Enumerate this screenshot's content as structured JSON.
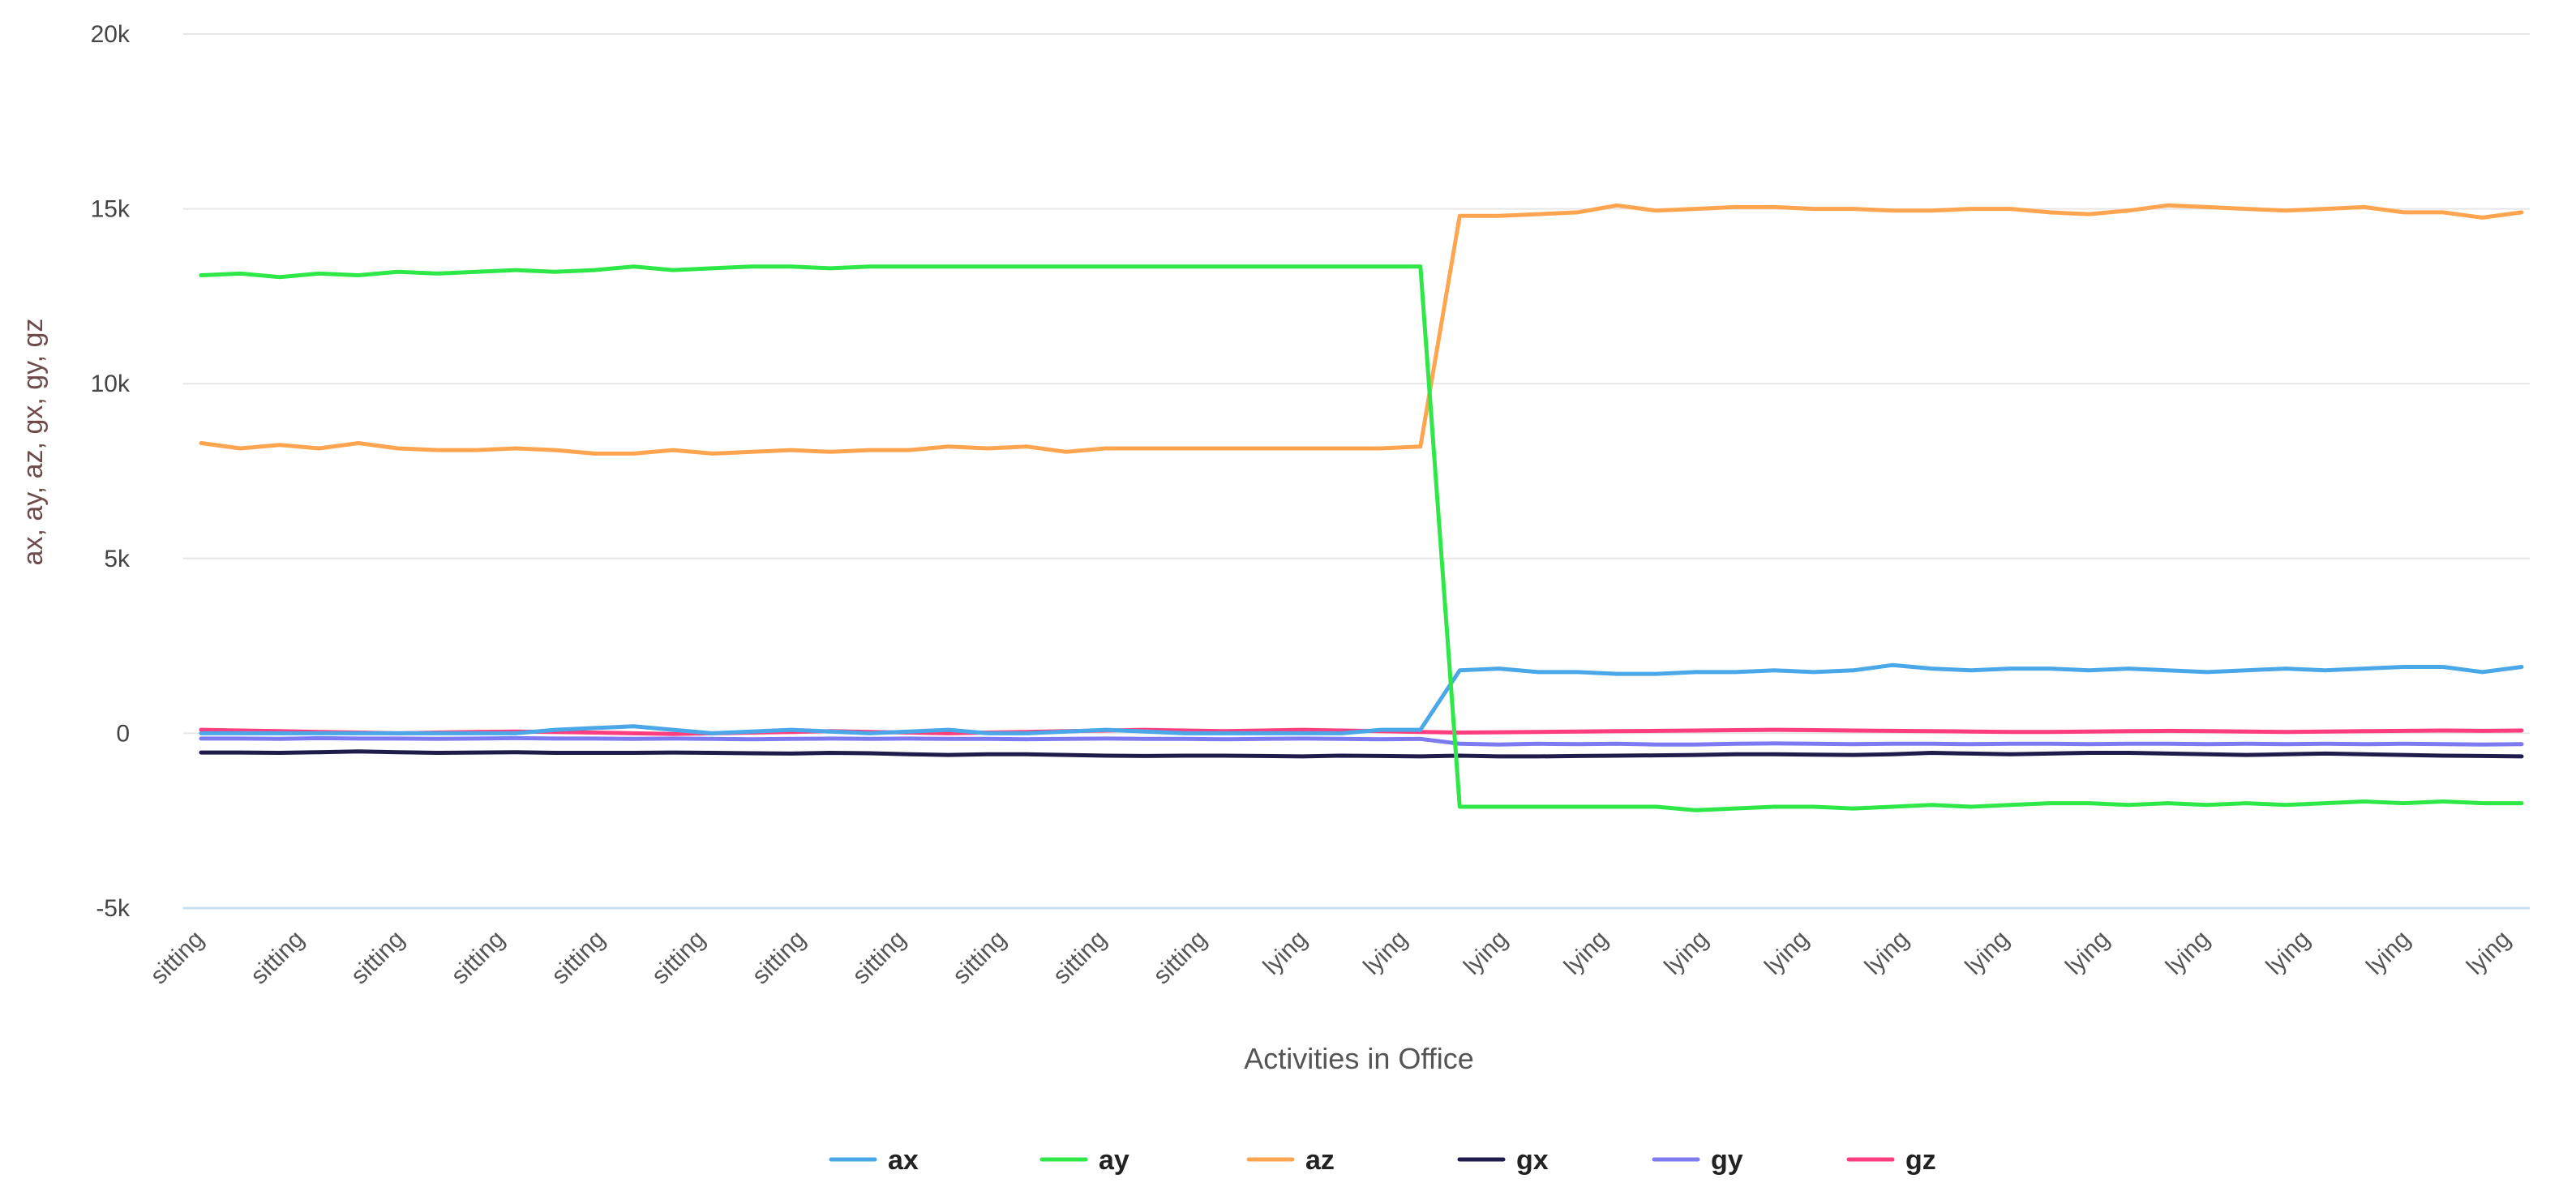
{
  "chart_data": {
    "type": "line",
    "title": "",
    "xlabel": "Activities in Office",
    "ylabel": "ax, ay, az, gx, gy, gz",
    "ylim": [
      -5000,
      20000
    ],
    "y_ticks": [
      {
        "value": -5000,
        "label": "-5k"
      },
      {
        "value": 0,
        "label": "0"
      },
      {
        "value": 5000,
        "label": "5k"
      },
      {
        "value": 10000,
        "label": "10k"
      },
      {
        "value": 15000,
        "label": "15k"
      },
      {
        "value": 20000,
        "label": "20k"
      }
    ],
    "x_tick_labels": [
      "sitting",
      "sitting",
      "sitting",
      "sitting",
      "sitting",
      "sitting",
      "sitting",
      "sitting",
      "sitting",
      "sitting",
      "sitting",
      "lying",
      "lying",
      "lying",
      "lying",
      "lying",
      "lying",
      "lying",
      "lying",
      "lying",
      "lying",
      "lying",
      "lying",
      "lying"
    ],
    "grid": true,
    "legend_position": "bottom-center",
    "series": [
      {
        "name": "ax",
        "color": "#4aa8e8",
        "values": [
          0,
          0,
          0,
          0,
          0,
          0,
          0,
          0,
          0,
          100,
          150,
          200,
          100,
          0,
          50,
          100,
          50,
          0,
          50,
          100,
          0,
          0,
          50,
          100,
          50,
          0,
          0,
          0,
          0,
          0,
          100,
          100,
          1800,
          1850,
          1750,
          1750,
          1700,
          1700,
          1750,
          1750,
          1800,
          1750,
          1800,
          1950,
          1850,
          1800,
          1850,
          1850,
          1800,
          1850,
          1800,
          1750,
          1800,
          1850,
          1800,
          1850,
          1900,
          1900,
          1750,
          1900
        ]
      },
      {
        "name": "ay",
        "color": "#2ee847",
        "values": [
          13100,
          13150,
          13050,
          13150,
          13100,
          13200,
          13150,
          13200,
          13250,
          13200,
          13250,
          13350,
          13250,
          13300,
          13350,
          13350,
          13300,
          13350,
          13350,
          13350,
          13350,
          13350,
          13350,
          13350,
          13350,
          13350,
          13350,
          13350,
          13350,
          13350,
          13350,
          13350,
          -2100,
          -2100,
          -2100,
          -2100,
          -2100,
          -2100,
          -2200,
          -2150,
          -2100,
          -2100,
          -2150,
          -2100,
          -2050,
          -2100,
          -2050,
          -2000,
          -2000,
          -2050,
          -2000,
          -2050,
          -2000,
          -2050,
          -2000,
          -1950,
          -2000,
          -1950,
          -2000,
          -2000
        ]
      },
      {
        "name": "az",
        "color": "#ffa550",
        "values": [
          8300,
          8150,
          8250,
          8150,
          8300,
          8150,
          8100,
          8100,
          8150,
          8100,
          8000,
          8000,
          8100,
          8000,
          8050,
          8100,
          8050,
          8100,
          8100,
          8200,
          8150,
          8200,
          8050,
          8150,
          8150,
          8150,
          8150,
          8150,
          8150,
          8150,
          8150,
          8200,
          14800,
          14800,
          14850,
          14900,
          15100,
          14950,
          15000,
          15050,
          15050,
          15000,
          15000,
          14950,
          14950,
          15000,
          15000,
          14900,
          14850,
          14950,
          15100,
          15050,
          15000,
          14950,
          15000,
          15050,
          14900,
          14900,
          14750,
          14900
        ]
      },
      {
        "name": "gx",
        "color": "#1f1b4b",
        "values": [
          -550,
          -550,
          -560,
          -540,
          -520,
          -540,
          -560,
          -550,
          -540,
          -560,
          -560,
          -560,
          -550,
          -560,
          -570,
          -580,
          -560,
          -570,
          -600,
          -620,
          -600,
          -600,
          -620,
          -640,
          -650,
          -640,
          -640,
          -650,
          -660,
          -640,
          -650,
          -660,
          -640,
          -660,
          -660,
          -650,
          -640,
          -630,
          -620,
          -600,
          -600,
          -610,
          -620,
          -600,
          -560,
          -580,
          -600,
          -580,
          -560,
          -560,
          -580,
          -600,
          -620,
          -600,
          -580,
          -600,
          -620,
          -640,
          -650,
          -660
        ]
      },
      {
        "name": "gy",
        "color": "#7d7bf2",
        "values": [
          -150,
          -150,
          -160,
          -140,
          -150,
          -150,
          -160,
          -150,
          -140,
          -150,
          -150,
          -160,
          -150,
          -160,
          -170,
          -160,
          -150,
          -160,
          -150,
          -160,
          -160,
          -170,
          -160,
          -150,
          -160,
          -160,
          -170,
          -160,
          -150,
          -160,
          -170,
          -160,
          -300,
          -320,
          -300,
          -310,
          -300,
          -320,
          -320,
          -300,
          -290,
          -300,
          -310,
          -300,
          -300,
          -310,
          -300,
          -300,
          -310,
          -300,
          -300,
          -310,
          -300,
          -310,
          -300,
          -310,
          -300,
          -310,
          -320,
          -310
        ]
      },
      {
        "name": "gz",
        "color": "#ff3d7f",
        "values": [
          100,
          80,
          60,
          40,
          20,
          0,
          20,
          40,
          50,
          40,
          20,
          0,
          -20,
          0,
          20,
          40,
          60,
          40,
          20,
          0,
          20,
          40,
          60,
          80,
          100,
          80,
          60,
          80,
          100,
          80,
          60,
          40,
          20,
          30,
          40,
          50,
          60,
          70,
          80,
          90,
          100,
          90,
          80,
          70,
          60,
          50,
          40,
          40,
          50,
          60,
          70,
          60,
          50,
          40,
          50,
          60,
          70,
          80,
          70,
          80
        ]
      }
    ]
  }
}
